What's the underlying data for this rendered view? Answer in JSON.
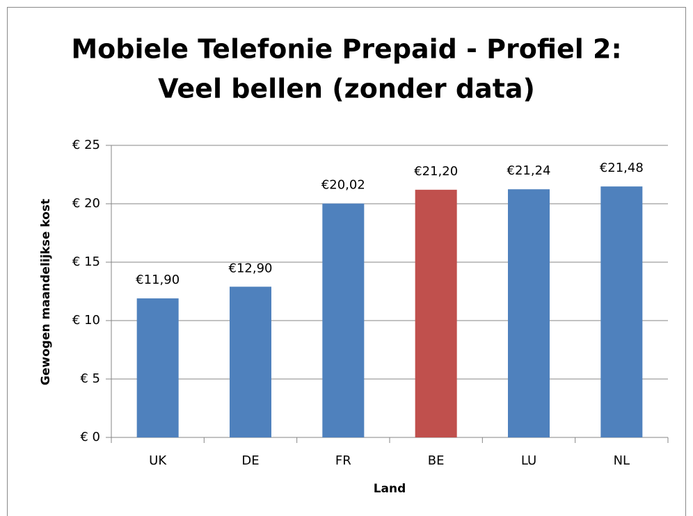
{
  "chart_data": {
    "type": "bar",
    "title": [
      "Mobiele Telefonie Prepaid - Profiel 2:",
      "Veel bellen (zonder data)"
    ],
    "x_label": "Land",
    "y_label": "Gewogen maandelijkse kost",
    "categories": [
      "UK",
      "DE",
      "FR",
      "BE",
      "LU",
      "NL"
    ],
    "values": [
      11.9,
      12.9,
      20.02,
      21.2,
      21.24,
      21.48
    ],
    "value_labels": [
      "€11,90",
      "€12,90",
      "€20,02",
      "€21,20",
      "€21,24",
      "€21,48"
    ],
    "colors": [
      "#4f81bd",
      "#4f81bd",
      "#4f81bd",
      "#c0504d",
      "#4f81bd",
      "#4f81bd"
    ],
    "ylim": [
      0,
      25
    ],
    "yticks": [
      {
        "value": 0,
        "label": "€ 0"
      },
      {
        "value": 5,
        "label": "€ 5"
      },
      {
        "value": 10,
        "label": "€ 10"
      },
      {
        "value": 15,
        "label": "€ 15"
      },
      {
        "value": 20,
        "label": "€ 20"
      },
      {
        "value": 25,
        "label": "€ 25"
      }
    ],
    "grid": true
  }
}
